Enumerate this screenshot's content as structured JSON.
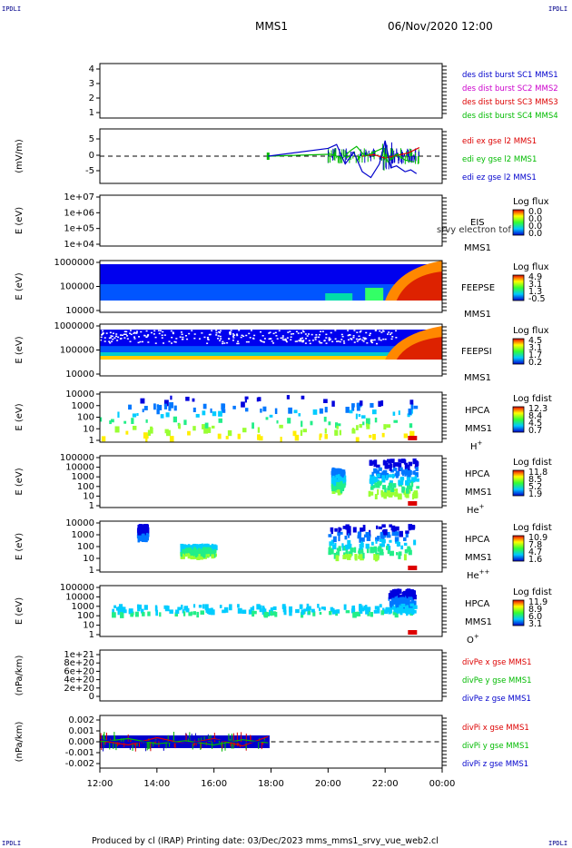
{
  "corner_label": "IPDLI",
  "header": {
    "title": "MMS1",
    "datetime": "06/Nov/2020 12:00"
  },
  "footer": {
    "text": "Produced by cl (IRAP)    Printing date: 03/Dec/2023    mms_mms1_srvy_vue_web2.cl"
  },
  "colors": {
    "red": "#dd0000",
    "green": "#00bb00",
    "blue": "#0000cc",
    "magenta": "#cc00cc"
  },
  "time_axis": {
    "ticks": [
      "12:00",
      "14:00",
      "16:00",
      "18:00",
      "20:00",
      "22:00",
      "00:00"
    ]
  },
  "chart_data": [
    {
      "type": "line",
      "id": "des",
      "ylabel": "",
      "yticks": [
        "1",
        "2",
        "3",
        "4"
      ],
      "ylim": [
        1,
        4
      ],
      "legend": [
        {
          "text": "des dist burst SC1 MMS1",
          "color": "#0000cc"
        },
        {
          "text": "des dist burst SC2 MMS2",
          "color": "#cc00cc"
        },
        {
          "text": "des dist burst SC3 MMS3",
          "color": "#dd0000"
        },
        {
          "text": "des dist burst SC4 MMS4",
          "color": "#00bb00"
        }
      ],
      "series": []
    },
    {
      "type": "line",
      "id": "edi",
      "ylabel": "(mV/m)",
      "yticks": [
        "5",
        "0",
        "-5"
      ],
      "ylim": [
        -7,
        7
      ],
      "legend": [
        {
          "text": "edi ex gse l2 MMS1",
          "color": "#dd0000"
        },
        {
          "text": "edi ey gse l2 MMS1",
          "color": "#00bb00"
        },
        {
          "text": "edi ez gse l2 MMS1",
          "color": "#0000cc"
        }
      ],
      "series": [
        {
          "name": "edi ex gse l2 MMS1",
          "x": [
            21.2,
            21.6,
            22.0,
            22.4,
            22.6,
            22.8,
            23.0,
            23.2
          ],
          "y": [
            0.0,
            0.4,
            -0.5,
            0.2,
            0.5,
            0.8,
            1.5,
            2.2
          ]
        },
        {
          "name": "edi ey gse l2 MMS1",
          "x": [
            17.9,
            20.1,
            20.5,
            20.8,
            21.0,
            21.3,
            21.6,
            21.9,
            22.1,
            22.4,
            22.7,
            23.0
          ],
          "y": [
            0.0,
            0.5,
            -0.5,
            1.5,
            2.5,
            0.0,
            1.0,
            2.0,
            -1.5,
            0.5,
            -1.0,
            -1.5
          ]
        },
        {
          "name": "edi ez gse l2 MMS1",
          "x": [
            17.9,
            20.0,
            20.3,
            20.6,
            20.9,
            21.2,
            21.5,
            21.8,
            22.0,
            22.2,
            22.4,
            22.7,
            22.9,
            23.1
          ],
          "y": [
            0.0,
            2.0,
            3.0,
            -2.0,
            1.0,
            -4.0,
            -5.5,
            -2.0,
            4.0,
            -3.0,
            -2.5,
            -4.0,
            -3.5,
            -4.5
          ]
        }
      ]
    },
    {
      "type": "heatmap",
      "id": "eis",
      "ylabel": "E (eV)",
      "yticks": [
        "1e+07",
        "1e+06",
        "1e+05",
        "1e+04"
      ],
      "labels": [
        "EIS",
        "MMS1"
      ],
      "overlap_text": "srvy electron tof",
      "colorbar": {
        "title": "Log flux",
        "ticks": [
          "0.0",
          "0.0",
          "0.0",
          "0.0"
        ]
      }
    },
    {
      "type": "heatmap",
      "id": "feepse",
      "ylabel": "E (eV)",
      "yticks": [
        "1000000",
        "100000",
        "10000"
      ],
      "labels": [
        "FEEPSE",
        "MMS1"
      ],
      "colorbar": {
        "title": "Log flux",
        "ticks": [
          "4.9",
          "3.1",
          "1.3",
          "-0.5"
        ]
      }
    },
    {
      "type": "heatmap",
      "id": "feepsi",
      "ylabel": "E (eV)",
      "yticks": [
        "1000000",
        "100000",
        "10000"
      ],
      "labels": [
        "FEEPSI",
        "MMS1"
      ],
      "colorbar": {
        "title": "Log flux",
        "ticks": [
          "4.5",
          "3.1",
          "1.7",
          "0.2"
        ]
      }
    },
    {
      "type": "heatmap",
      "id": "hpca_h",
      "ylabel": "E (eV)",
      "yticks": [
        "10000",
        "1000",
        "100",
        "10",
        "1"
      ],
      "labels": [
        "HPCA",
        "MMS1"
      ],
      "species": "H",
      "sup": "+",
      "colorbar": {
        "title": "Log fdist",
        "ticks": [
          "12.3",
          "8.4",
          "4.5",
          "0.7"
        ]
      }
    },
    {
      "type": "heatmap",
      "id": "hpca_he",
      "ylabel": "E (eV)",
      "yticks": [
        "100000",
        "10000",
        "1000",
        "100",
        "10",
        "1"
      ],
      "labels": [
        "HPCA",
        "MMS1"
      ],
      "species": "He",
      "sup": "+",
      "colorbar": {
        "title": "Log fdist",
        "ticks": [
          "11.8",
          "8.5",
          "5.2",
          "1.9"
        ]
      }
    },
    {
      "type": "heatmap",
      "id": "hpca_he2",
      "ylabel": "E (eV)",
      "yticks": [
        "10000",
        "1000",
        "100",
        "10",
        "1"
      ],
      "labels": [
        "HPCA",
        "MMS1"
      ],
      "species": "He",
      "sup": "++",
      "colorbar": {
        "title": "Log fdist",
        "ticks": [
          "10.9",
          "7.8",
          "4.7",
          "1.6"
        ]
      }
    },
    {
      "type": "heatmap",
      "id": "hpca_o",
      "ylabel": "E (eV)",
      "yticks": [
        "100000",
        "10000",
        "1000",
        "100",
        "10",
        "1"
      ],
      "labels": [
        "HPCA",
        "MMS1"
      ],
      "species": "O",
      "sup": "+",
      "colorbar": {
        "title": "Log fdist",
        "ticks": [
          "11.9",
          "8.9",
          "6.0",
          "3.1"
        ]
      }
    },
    {
      "type": "line",
      "id": "divpe",
      "ylabel": "(nPa/km)",
      "yticks": [
        "1e+21",
        "8e+20",
        "6e+20",
        "4e+20",
        "2e+20",
        "0"
      ],
      "ylim": [
        0,
        1e+21
      ],
      "legend": [
        {
          "text": "divPe x gse MMS1",
          "color": "#dd0000"
        },
        {
          "text": "divPe y gse MMS1",
          "color": "#00bb00"
        },
        {
          "text": "divPe z gse MMS1",
          "color": "#0000cc"
        }
      ],
      "series": []
    },
    {
      "type": "line",
      "id": "divpi",
      "ylabel": "(nPa/km)",
      "yticks": [
        "0.002",
        "0.001",
        "0.000",
        "-0.001",
        "-0.002"
      ],
      "ylim": [
        -0.0025,
        0.0025
      ],
      "legend": [
        {
          "text": "divPi x gse MMS1",
          "color": "#dd0000"
        },
        {
          "text": "divPi y gse MMS1",
          "color": "#00bb00"
        },
        {
          "text": "divPi z gse MMS1",
          "color": "#0000cc"
        }
      ],
      "series": [
        {
          "name": "divPi x gse MMS1",
          "x": [
            12.0,
            13.0,
            14.0,
            15.0,
            16.0,
            17.0,
            17.9
          ],
          "y": [
            0.0001,
            -0.0003,
            0.0004,
            -0.0002,
            0.0003,
            -0.0004,
            0.0005
          ]
        },
        {
          "name": "divPi y gse MMS1",
          "x": [
            12.0,
            13.0,
            14.0,
            15.0,
            16.0,
            17.0,
            17.9
          ],
          "y": [
            0.0,
            0.0003,
            -0.0002,
            0.0001,
            -0.0003,
            0.0002,
            -0.0001
          ]
        },
        {
          "name": "divPi z gse MMS1",
          "x": [
            12.0,
            13.0,
            14.0,
            15.0,
            16.0,
            17.0,
            17.9
          ],
          "y": [
            0.0002,
            -0.0001,
            0.0001,
            -0.0002,
            0.0002,
            -0.0001,
            0.0001
          ]
        }
      ]
    }
  ]
}
